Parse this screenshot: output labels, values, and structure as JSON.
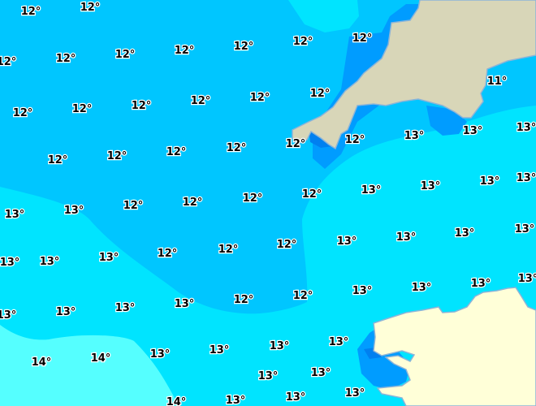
{
  "map": {
    "colors": {
      "sst_11": "#00a8ff",
      "sst_12": "#00c6ff",
      "sst_13": "#00e4ff",
      "sst_14": "#55ffff",
      "coastal_dark": "#009cff",
      "coastal_darker": "#0080f0",
      "land_uk": "#d8d6b8",
      "land_france": "#ffffd8",
      "coastline": "#8cb4d8"
    },
    "temperature_labels": [
      "12°",
      "12°",
      "12°",
      "12°",
      "12°",
      "12°",
      "12°",
      "12°",
      "12°",
      "12°",
      "12°",
      "12°",
      "12°",
      "12°",
      "12°",
      "12°",
      "12°",
      "12°",
      "12°",
      "12°",
      "12°",
      "12°",
      "12°",
      "12°",
      "12°",
      "12°",
      "12°",
      "12°",
      "12°",
      "12°",
      "11°",
      "13°",
      "13°",
      "13°",
      "13°",
      "13°",
      "13°",
      "13°",
      "13°",
      "13°",
      "13°",
      "13°",
      "13°",
      "13°",
      "13°",
      "13°",
      "13°",
      "13°",
      "13°",
      "13°",
      "13°",
      "13°",
      "13°",
      "13°",
      "13°",
      "13°",
      "13°",
      "13°",
      "13°",
      "13°",
      "13°",
      "13°",
      "13°",
      "13°",
      "14°",
      "14°",
      "14°"
    ]
  }
}
